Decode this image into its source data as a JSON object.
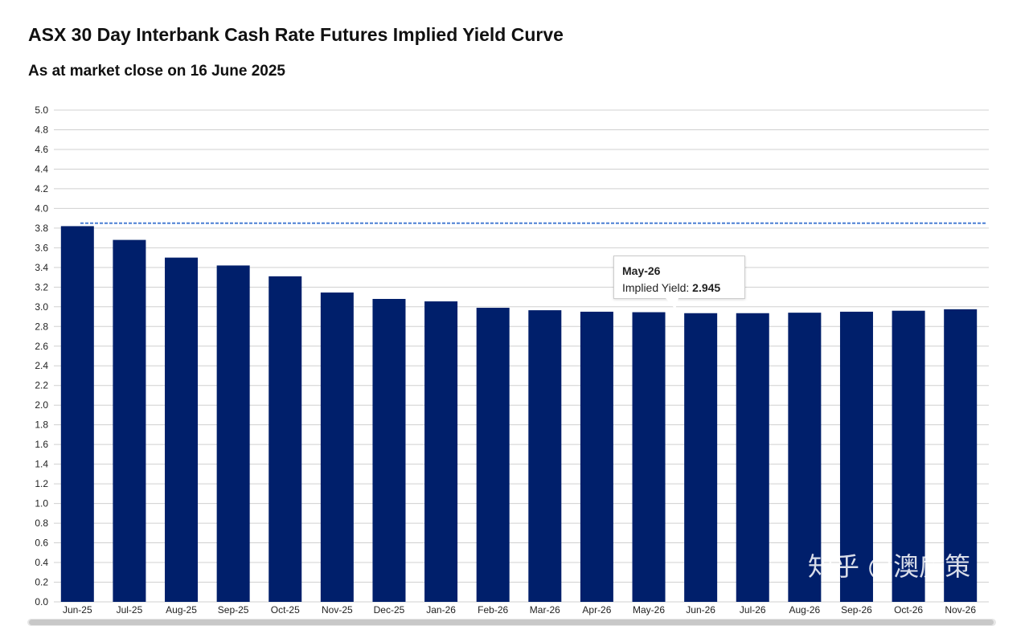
{
  "chart_data": {
    "type": "bar",
    "title": "ASX 30 Day Interbank Cash Rate Futures Implied Yield Curve",
    "subtitle": "As at market close on 16 June 2025",
    "xlabel": "",
    "ylabel": "",
    "ylim": [
      0,
      5.0
    ],
    "yticks": [
      "0.0",
      "0.2",
      "0.4",
      "0.6",
      "0.8",
      "1.0",
      "1.2",
      "1.4",
      "1.6",
      "1.8",
      "2.0",
      "2.2",
      "2.4",
      "2.6",
      "2.8",
      "3.0",
      "3.2",
      "3.4",
      "3.6",
      "3.8",
      "4.0",
      "4.2",
      "4.4",
      "4.6",
      "4.8",
      "5.0"
    ],
    "grid": true,
    "categories": [
      "Jun-25",
      "Jul-25",
      "Aug-25",
      "Sep-25",
      "Oct-25",
      "Nov-25",
      "Dec-25",
      "Jan-26",
      "Feb-26",
      "Mar-26",
      "Apr-26",
      "May-26",
      "Jun-26",
      "Jul-26",
      "Aug-26",
      "Sep-26",
      "Oct-26",
      "Nov-26"
    ],
    "series": [
      {
        "name": "Implied Yield",
        "color": "#001f6b",
        "values": [
          3.82,
          3.68,
          3.5,
          3.42,
          3.31,
          3.145,
          3.08,
          3.055,
          2.99,
          2.965,
          2.95,
          2.945,
          2.935,
          2.935,
          2.94,
          2.95,
          2.96,
          2.975
        ]
      }
    ],
    "reference_line": {
      "value": 3.85,
      "style": "dashed",
      "color": "#4a7fd4"
    },
    "tooltip": {
      "category": "May-26",
      "label": "Implied Yield:",
      "value": "2.945"
    }
  },
  "watermark": "知乎 @澳房策"
}
